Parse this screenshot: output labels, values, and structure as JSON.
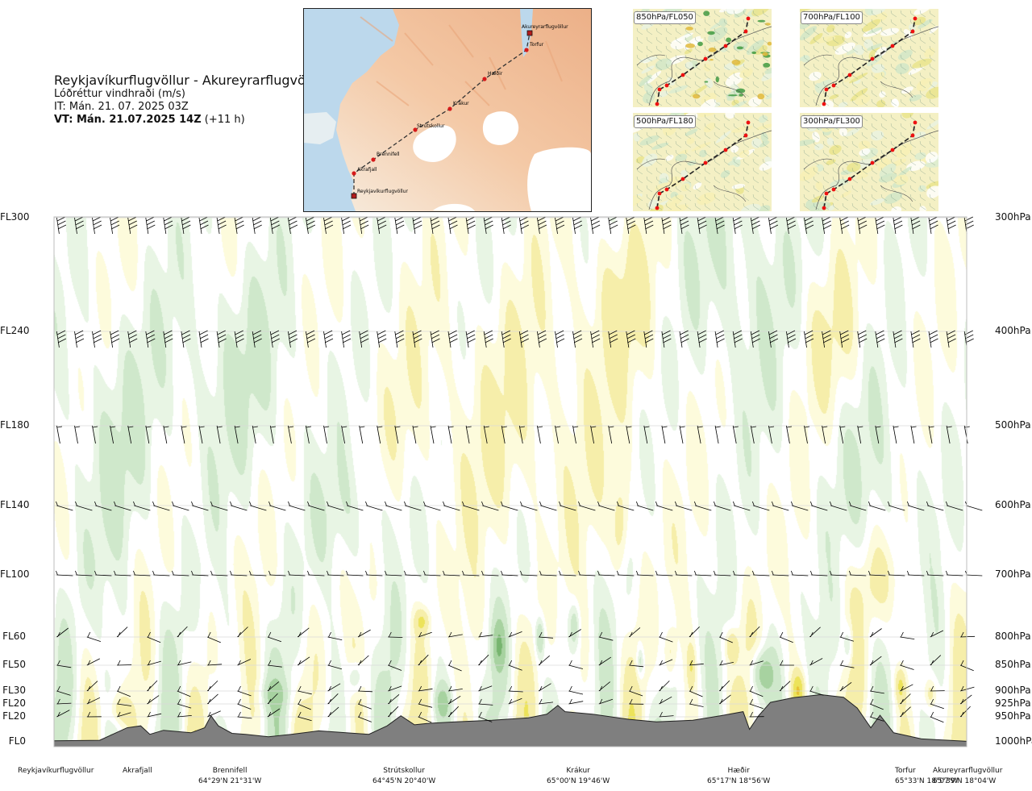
{
  "header": {
    "route": "Reykjavíkurflugvöllur - Akureyrarflugvöllur",
    "product": "Lóðréttur vindhraði (m/s)",
    "issue_time": "IT: Mán. 21. 07. 2025 03Z",
    "valid_prefix": "VT: Mán. 21.07.2025 14Z",
    "valid_offset": "(+11 h)"
  },
  "map": {
    "waypoints": [
      "Reykjavíkurflugvöllur",
      "Akrafjall",
      "Brennifell",
      "Strútskollur",
      "Krákur",
      "Hæðir",
      "Torfur",
      "Akureyrarflugvöllur"
    ]
  },
  "level_maps": [
    {
      "label": "850hPa/FL050"
    },
    {
      "label": "700hPa/FL100"
    },
    {
      "label": "500hPa/FL180"
    },
    {
      "label": "300hPa/FL300"
    }
  ],
  "chart_data": {
    "type": "heatmap",
    "title": "Lóðréttur vindhraði (m/s)",
    "x_domain": [
      0,
      100
    ],
    "y_levels_left": [
      {
        "label": "FL300",
        "hpa": 300
      },
      {
        "label": "FL240",
        "hpa": 400
      },
      {
        "label": "FL180",
        "hpa": 500
      },
      {
        "label": "FL140",
        "hpa": 600
      },
      {
        "label": "FL100",
        "hpa": 700
      },
      {
        "label": "FL60",
        "hpa": 800
      },
      {
        "label": "FL50",
        "hpa": 850
      },
      {
        "label": "FL30",
        "hpa": 900
      },
      {
        "label": "FL20",
        "hpa": 925
      },
      {
        "label": "FL20",
        "hpa": 950
      },
      {
        "label": "FL0",
        "hpa": 1000
      }
    ],
    "y_levels_right": [
      "300hPa",
      "400hPa",
      "500hPa",
      "600hPa",
      "700hPa",
      "800hPa",
      "850hPa",
      "900hPa",
      "925hPa",
      "950hPa",
      "1000hPa"
    ],
    "stations": [
      {
        "name": "Reykjavíkurflugvöllur",
        "coord": "",
        "x": 0
      },
      {
        "name": "Akrafjall",
        "coord": "",
        "x": 9
      },
      {
        "name": "Brennifell",
        "coord": "64°29'N 21°31'W",
        "x": 18.5
      },
      {
        "name": "Strútskollur",
        "coord": "64°45'N 20°40'W",
        "x": 38
      },
      {
        "name": "Krákur",
        "coord": "65°00'N 19°46'W",
        "x": 55
      },
      {
        "name": "Hæðir",
        "coord": "65°17'N 18°56'W",
        "x": 73
      },
      {
        "name": "Torfur",
        "coord": "65°33'N 18°07'W",
        "x": 92
      },
      {
        "name": "Akureyrarflugvöllur",
        "coord": "65°39'N 18°04'W",
        "x": 100
      }
    ],
    "terrain_hpa": [
      [
        0,
        998
      ],
      [
        5,
        997
      ],
      [
        8,
        972
      ],
      [
        9.5,
        968
      ],
      [
        10.5,
        985
      ],
      [
        12,
        977
      ],
      [
        15,
        982
      ],
      [
        16.5,
        972
      ],
      [
        17.2,
        948
      ],
      [
        18,
        968
      ],
      [
        19.5,
        983
      ],
      [
        21,
        985
      ],
      [
        23.5,
        990
      ],
      [
        26,
        985
      ],
      [
        29,
        978
      ],
      [
        32,
        982
      ],
      [
        34.5,
        985
      ],
      [
        36.5,
        968
      ],
      [
        38,
        948
      ],
      [
        39.5,
        966
      ],
      [
        41,
        963
      ],
      [
        44,
        960
      ],
      [
        48,
        957
      ],
      [
        52,
        952
      ],
      [
        54,
        945
      ],
      [
        55.2,
        928
      ],
      [
        56,
        940
      ],
      [
        59,
        945
      ],
      [
        63,
        955
      ],
      [
        66,
        960
      ],
      [
        70,
        957
      ],
      [
        73,
        948
      ],
      [
        75.5,
        940
      ],
      [
        76.2,
        975
      ],
      [
        77.2,
        948
      ],
      [
        78.5,
        922
      ],
      [
        81,
        913
      ],
      [
        84,
        907
      ],
      [
        86.5,
        912
      ],
      [
        88,
        933
      ],
      [
        89.5,
        972
      ],
      [
        90.5,
        947
      ],
      [
        92,
        982
      ],
      [
        95,
        994
      ],
      [
        98,
        997
      ],
      [
        100,
        999
      ]
    ],
    "contour_levels_ms": [
      -2,
      -1,
      -0.5,
      -0.25,
      0.25,
      0.5,
      1,
      2
    ],
    "wind_barb_levels_hpa": [
      300,
      400,
      500,
      600,
      700,
      800,
      850,
      900,
      925,
      950
    ]
  },
  "colors": {
    "neg3": "#77b56f",
    "neg2": "#a7d2a0",
    "neg1": "#cfe8cb",
    "neg0": "#e8f5e4",
    "zero": "#ffffff",
    "pos0": "#fdfbdc",
    "pos1": "#f6eeaa",
    "pos2": "#ece35a",
    "pos3": "#e7bf32",
    "pos4": "#e0923a",
    "terrain": "#7f7f7f",
    "barb": "#000000"
  }
}
